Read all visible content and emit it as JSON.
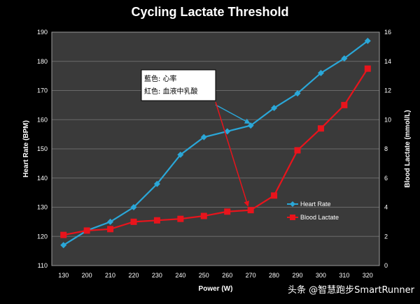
{
  "chart_data": {
    "type": "line",
    "title": "Cycling Lactate Threshold",
    "xlabel": "Power (W)",
    "ylabel_left": "Heart Rate (BPM)",
    "ylabel_right": "Blood Lactate (mmol/L)",
    "categories": [
      "130",
      "200",
      "210",
      "220",
      "230",
      "240",
      "250",
      "260",
      "270",
      "280",
      "290",
      "300",
      "310",
      "320"
    ],
    "ylim_left": [
      110,
      190
    ],
    "yticks_left": [
      "110",
      "120",
      "130",
      "140",
      "150",
      "160",
      "170",
      "180",
      "190"
    ],
    "ylim_right": [
      0,
      16
    ],
    "yticks_right": [
      "0",
      "2",
      "4",
      "6",
      "8",
      "10",
      "12",
      "14",
      "16"
    ],
    "grid": true,
    "legend_position": "bottom-right",
    "series": [
      {
        "name": "Heart Rate",
        "axis": "left",
        "color": "#2aa7d8",
        "marker": "diamond",
        "values": [
          117,
          122,
          125,
          130,
          138,
          148,
          154,
          156,
          158,
          164,
          169,
          176,
          181,
          187
        ]
      },
      {
        "name": "Blood Lactate",
        "axis": "right",
        "color": "#e8141c",
        "marker": "square",
        "values": [
          2.1,
          2.4,
          2.5,
          3.0,
          3.1,
          3.2,
          3.4,
          3.7,
          3.8,
          4.8,
          7.9,
          9.4,
          11.0,
          13.5
        ]
      }
    ],
    "annotation": {
      "line1": "藍色: 心率",
      "line2": "紅色: 血液中乳酸"
    }
  },
  "watermark": "头条 @智慧跑步SmartRunner"
}
